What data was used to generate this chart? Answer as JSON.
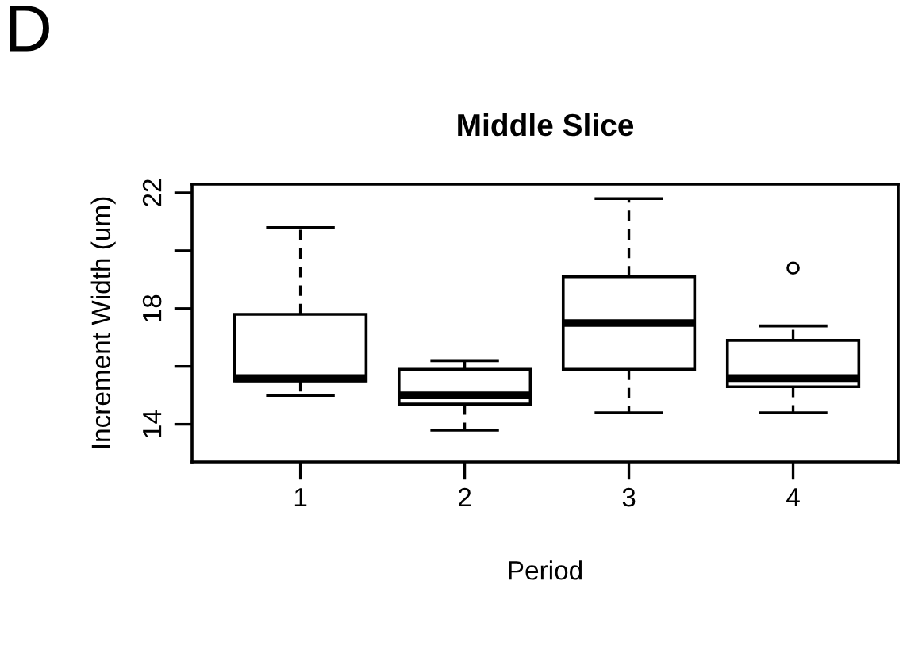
{
  "chart_data": {
    "type": "box",
    "title": "Middle Slice",
    "xlabel": "Period",
    "ylabel": "Increment Width (um)",
    "annotations": [
      "D"
    ],
    "categories": [
      "1",
      "2",
      "3",
      "4"
    ],
    "boxes": [
      {
        "low": 15.0,
        "q1": 15.5,
        "median": 15.6,
        "q3": 17.8,
        "high": 20.8
      },
      {
        "low": 13.8,
        "q1": 14.7,
        "median": 15.0,
        "q3": 15.9,
        "high": 16.2
      },
      {
        "low": 14.4,
        "q1": 15.9,
        "median": 17.5,
        "q3": 19.1,
        "high": 21.8
      },
      {
        "low": 14.4,
        "q1": 15.3,
        "median": 15.6,
        "q3": 16.9,
        "high": 17.4,
        "outliers": [
          19.4
        ]
      }
    ],
    "color": "#ffffff",
    "ylim": [
      12.7,
      22.3
    ],
    "yticks": [
      14,
      {
        "value": 16,
        "label": null
      },
      18,
      {
        "value": 20,
        "label": null
      },
      22
    ],
    "grid": false,
    "legend": false
  }
}
